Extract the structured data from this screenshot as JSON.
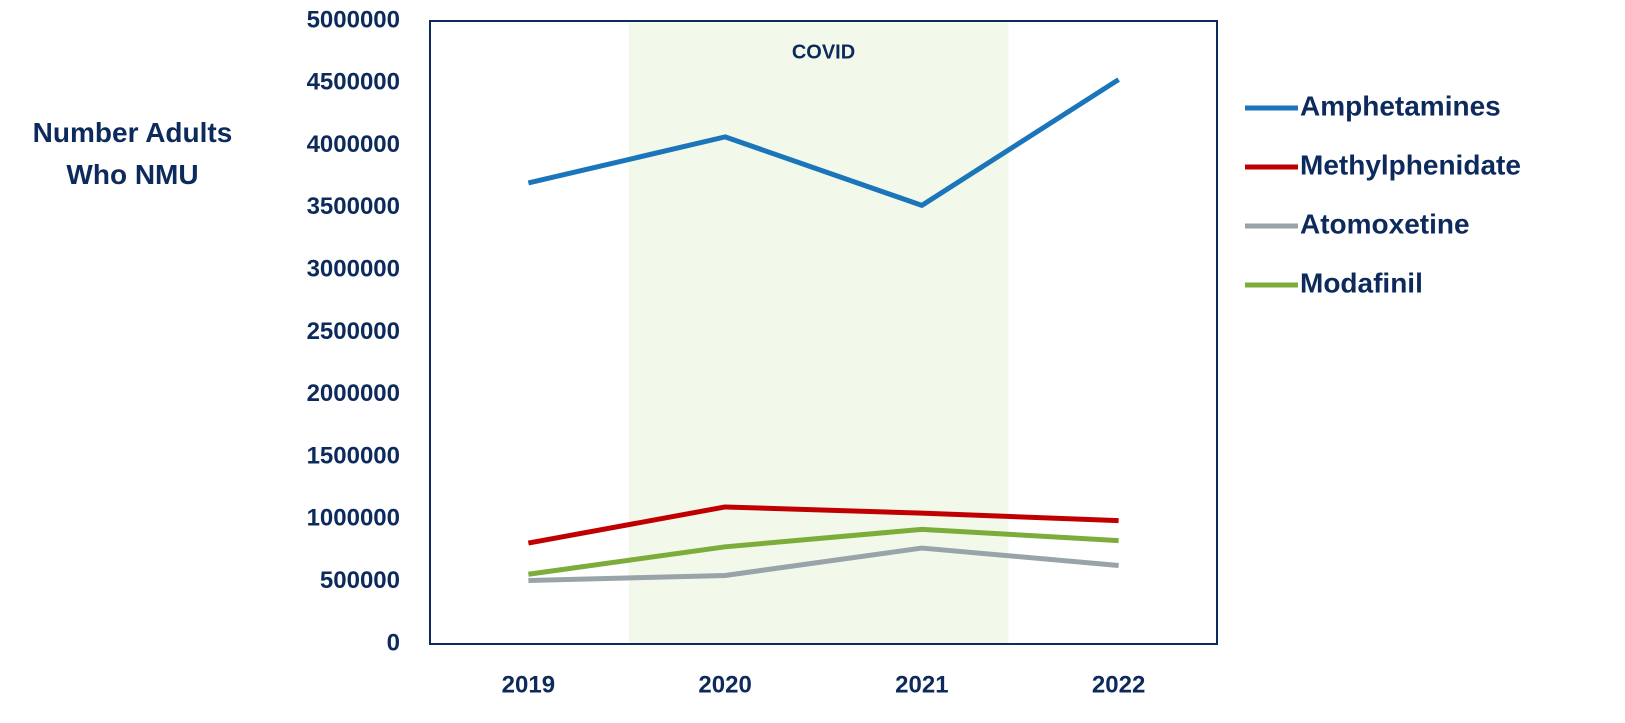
{
  "chart_data": {
    "type": "line",
    "y_label": "Number Adults Who NMU",
    "annotations": [
      {
        "text": "COVID"
      }
    ],
    "categories": [
      "2019",
      "2020",
      "2021",
      "2022"
    ],
    "series": [
      {
        "name": "Amphetamines",
        "color": "#1b75bb",
        "values": [
          3700000,
          4070000,
          3520000,
          4530000
        ]
      },
      {
        "name": "Methylphenidate",
        "color": "#c00000",
        "values": [
          810000,
          1100000,
          1050000,
          990000
        ]
      },
      {
        "name": "Atomoxetine",
        "color": "#98a3aa",
        "values": [
          510000,
          550000,
          770000,
          630000
        ]
      },
      {
        "name": "Modafinil",
        "color": "#7cac3a",
        "values": [
          560000,
          780000,
          920000,
          830000
        ]
      }
    ],
    "ylim": [
      0,
      5000000
    ],
    "yticks": [
      0,
      500000,
      1000000,
      1500000,
      2000000,
      2500000,
      3000000,
      3500000,
      4000000,
      4500000,
      5000000
    ],
    "grid": false,
    "legend": "right"
  }
}
